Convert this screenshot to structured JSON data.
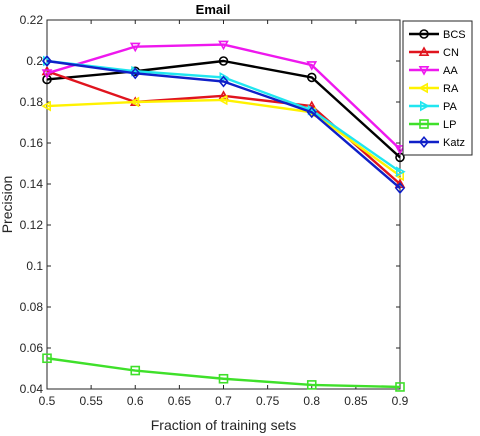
{
  "chart_data": {
    "type": "line",
    "title": "Email",
    "xlabel": "Fraction of training sets",
    "ylabel": "Precision",
    "xlim": [
      0.5,
      0.9
    ],
    "ylim": [
      0.04,
      0.22
    ],
    "xticks": [
      "0.5",
      "0.55",
      "0.6",
      "0.65",
      "0.7",
      "0.75",
      "0.8",
      "0.85",
      "0.9"
    ],
    "yticks": [
      "0.04",
      "0.06",
      "0.08",
      "0.1",
      "0.12",
      "0.14",
      "0.16",
      "0.18",
      "0.2",
      "0.22"
    ],
    "grid": false,
    "legend_position": "top-right",
    "x": [
      0.5,
      0.6,
      0.7,
      0.8,
      0.9
    ],
    "series": [
      {
        "name": "BCS",
        "values": [
          0.191,
          0.195,
          0.2,
          0.192,
          0.153
        ],
        "color": "#000000",
        "marker": "circle"
      },
      {
        "name": "CN",
        "values": [
          0.195,
          0.18,
          0.183,
          0.178,
          0.14
        ],
        "color": "#e0141e",
        "marker": "triangle-up"
      },
      {
        "name": "AA",
        "values": [
          0.194,
          0.207,
          0.208,
          0.198,
          0.157
        ],
        "color": "#ee18ee",
        "marker": "triangle-down"
      },
      {
        "name": "RA",
        "values": [
          0.178,
          0.18,
          0.181,
          0.175,
          0.144
        ],
        "color": "#fff200",
        "marker": "triangle-left"
      },
      {
        "name": "PA",
        "values": [
          0.2,
          0.195,
          0.192,
          0.176,
          0.146
        ],
        "color": "#21e6f0",
        "marker": "triangle-right"
      },
      {
        "name": "LP",
        "values": [
          0.055,
          0.049,
          0.045,
          0.042,
          0.041
        ],
        "color": "#3fe02a",
        "marker": "square"
      },
      {
        "name": "Katz",
        "values": [
          0.2,
          0.194,
          0.19,
          0.175,
          0.138
        ],
        "color": "#1020c8",
        "marker": "diamond"
      }
    ]
  }
}
